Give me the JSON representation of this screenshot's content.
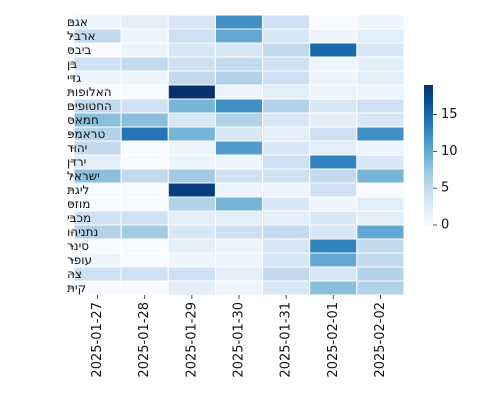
{
  "chart_data": {
    "type": "heatmap",
    "title": "",
    "xlabel": "",
    "ylabel": "",
    "x": [
      "2025-01-27",
      "2025-01-28",
      "2025-01-29",
      "2025-01-30",
      "2025-01-31",
      "2025-02-01",
      "2025-02-02"
    ],
    "y": [
      "אגם",
      "ארבל",
      "ביבס",
      "בן",
      "גדי",
      "האלופות",
      "החטופים",
      "חמאס",
      "טראמפ",
      "יהוד",
      "ירדן",
      "ישראל",
      "ליגת",
      "מוזס",
      "מכבי",
      "נתניהו",
      "סינר",
      "עופר",
      "צה",
      "קית"
    ],
    "values": [
      [
        1,
        2,
        3,
        12,
        4,
        0,
        1
      ],
      [
        5,
        1,
        4,
        10,
        3,
        1,
        2
      ],
      [
        0,
        1,
        3,
        3,
        5,
        15,
        3
      ],
      [
        4,
        5,
        4,
        5,
        4,
        1,
        2
      ],
      [
        1,
        1,
        5,
        6,
        4,
        1,
        2
      ],
      [
        0,
        0,
        19,
        1,
        2,
        1,
        1
      ],
      [
        5,
        4,
        9,
        12,
        6,
        3,
        4
      ],
      [
        8,
        8,
        3,
        6,
        3,
        2,
        3
      ],
      [
        6,
        14,
        9,
        3,
        2,
        4,
        12
      ],
      [
        5,
        0,
        1,
        11,
        3,
        2,
        1
      ],
      [
        2,
        0,
        1,
        1,
        4,
        13,
        3
      ],
      [
        8,
        5,
        7,
        4,
        4,
        5,
        9
      ],
      [
        0,
        0,
        18,
        1,
        1,
        4,
        0
      ],
      [
        0,
        0,
        6,
        9,
        3,
        1,
        2
      ],
      [
        4,
        4,
        2,
        2,
        2,
        3,
        2
      ],
      [
        6,
        7,
        3,
        4,
        5,
        3,
        10
      ],
      [
        0,
        0,
        2,
        1,
        3,
        13,
        5
      ],
      [
        1,
        0,
        1,
        1,
        3,
        10,
        5
      ],
      [
        4,
        4,
        4,
        2,
        5,
        3,
        6
      ],
      [
        0,
        0,
        2,
        1,
        3,
        8,
        6
      ]
    ],
    "vmin": 0,
    "vmax": 19,
    "colorbar": {
      "ticks": [
        0,
        5,
        10,
        15
      ],
      "orientation": "vertical",
      "placement": "right"
    },
    "colormap": {
      "name": "Blues",
      "stops": [
        "#f7fbff",
        "#deebf7",
        "#c6dbef",
        "#9ecae1",
        "#6baed6",
        "#4292c6",
        "#2171b5",
        "#08519c",
        "#08306b"
      ]
    },
    "grid": false,
    "cell_border_color": "#ffffff"
  }
}
